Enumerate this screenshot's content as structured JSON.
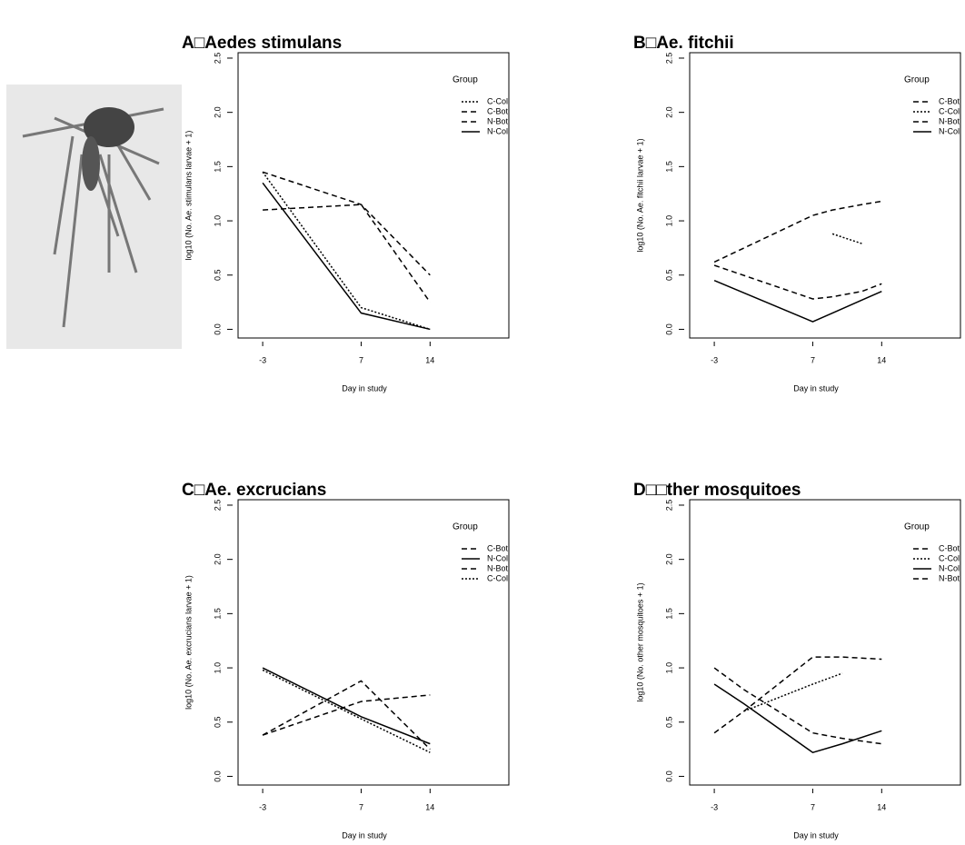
{
  "chart_data": [
    {
      "type": "line",
      "title": "A□Aedes stimulans",
      "x_label": "Day in study",
      "y_label": "log10 (No. Ae. stimulans larvae + 1)",
      "legend_title": "Group",
      "legend": "top-right",
      "x": [
        -3,
        7,
        14
      ],
      "xlim": [
        -5.5,
        22
      ],
      "xticks": [
        -3,
        7,
        14
      ],
      "ylim": [
        -0.08,
        2.55
      ],
      "yticks": [
        {
          "value": 0,
          "label": "0.0"
        },
        0.5,
        {
          "value": 1,
          "label": "1.0"
        },
        1.5,
        {
          "value": 2,
          "label": "2.0"
        },
        2.5
      ],
      "series": [
        {
          "name": "C-Col",
          "color": "#000000",
          "dash": "dotted",
          "values": [
            1.45,
            0.2,
            0.0
          ]
        },
        {
          "name": "C-Bot",
          "color": "#000000",
          "dash": "dashed",
          "values": [
            1.1,
            1.15,
            0.25
          ]
        },
        {
          "name": "N-Bot",
          "color": "#000000",
          "dash": "dashed",
          "values": [
            1.45,
            1.15,
            0.5
          ]
        },
        {
          "name": "N-Col",
          "color": "#000000",
          "dash": "solid",
          "values": [
            1.35,
            0.15,
            0.0
          ]
        }
      ]
    },
    {
      "type": "line",
      "title": "B□Ae. fitchii",
      "x_label": "Day in study",
      "y_label": "log10 (No. Ae. fitchii larvae + 1)",
      "legend_title": "Group",
      "legend": "top-right",
      "x": [
        -3,
        7,
        9,
        12,
        14
      ],
      "xlim": [
        -5.5,
        22
      ],
      "xticks": [
        -3,
        7,
        14
      ],
      "ylim": [
        -0.08,
        2.55
      ],
      "yticks": [
        {
          "value": 0,
          "label": "0.0"
        },
        0.5,
        {
          "value": 1,
          "label": "1.0"
        },
        1.5,
        {
          "value": 2,
          "label": "2.0"
        },
        2.5
      ],
      "series": [
        {
          "name": "C-Bot",
          "color": "#000000",
          "dash": "dashed",
          "values": [
            0.62,
            1.05,
            1.1,
            1.15,
            1.18
          ]
        },
        {
          "name": "C-Col",
          "color": "#000000",
          "dash": "dotted",
          "values": [
            null,
            null,
            0.88,
            0.79,
            null
          ]
        },
        {
          "name": "N-Bot",
          "color": "#000000",
          "dash": "dashed",
          "values": [
            0.59,
            0.28,
            0.3,
            0.35,
            0.42
          ]
        },
        {
          "name": "N-Col",
          "color": "#000000",
          "dash": "solid",
          "values": [
            0.45,
            0.07,
            0.15,
            0.27,
            0.35
          ]
        }
      ]
    },
    {
      "type": "line",
      "title": "C□Ae. excrucians",
      "x_label": "Day in study",
      "y_label": "log10 (No. Ae. excrucians larvae + 1)",
      "legend_title": "Group",
      "legend": "top-right",
      "x": [
        -3,
        7,
        14
      ],
      "xlim": [
        -5.5,
        22
      ],
      "xticks": [
        -3,
        7,
        14
      ],
      "ylim": [
        -0.08,
        2.55
      ],
      "yticks": [
        {
          "value": 0,
          "label": "0.0"
        },
        0.5,
        {
          "value": 1,
          "label": "1.0"
        },
        1.5,
        {
          "value": 2,
          "label": "2.0"
        },
        2.5
      ],
      "series": [
        {
          "name": "C-Bot",
          "color": "#000000",
          "dash": "dashed",
          "values": [
            0.38,
            0.69,
            0.75
          ]
        },
        {
          "name": "N-Col",
          "color": "#000000",
          "dash": "solid",
          "values": [
            1.0,
            0.55,
            0.3
          ]
        },
        {
          "name": "N-Bot",
          "color": "#000000",
          "dash": "dashed",
          "values": [
            0.38,
            0.88,
            0.25
          ]
        },
        {
          "name": "C-Col",
          "color": "#000000",
          "dash": "dotted",
          "values": [
            0.98,
            0.53,
            0.22
          ]
        }
      ]
    },
    {
      "type": "line",
      "title": "D□□ther mosquitoes",
      "x_label": "Day in study",
      "y_label": "log10 (No. other mosquitoes + 1)",
      "legend_title": "Group",
      "legend": "top-right",
      "x": [
        -3,
        0,
        7,
        10,
        14
      ],
      "xlim": [
        -5.5,
        22
      ],
      "xticks": [
        -3,
        7,
        14
      ],
      "ylim": [
        -0.08,
        2.55
      ],
      "yticks": [
        {
          "value": 0,
          "label": "0.0"
        },
        0.5,
        {
          "value": 1,
          "label": "1.0"
        },
        1.5,
        {
          "value": 2,
          "label": "2.0"
        },
        2.5
      ],
      "series": [
        {
          "name": "C-Bot",
          "color": "#000000",
          "dash": "dashed",
          "values": [
            0.4,
            0.6,
            1.1,
            1.1,
            1.08
          ]
        },
        {
          "name": "C-Col",
          "color": "#000000",
          "dash": "dotted",
          "values": [
            null,
            0.6,
            0.85,
            0.95,
            null
          ]
        },
        {
          "name": "N-Col",
          "color": "#000000",
          "dash": "solid",
          "values": [
            0.85,
            0.67,
            0.22,
            0.3,
            0.42
          ]
        },
        {
          "name": "N-Bot",
          "color": "#000000",
          "dash": "dashed",
          "values": [
            1.0,
            0.8,
            0.4,
            0.35,
            0.3
          ]
        }
      ]
    }
  ]
}
